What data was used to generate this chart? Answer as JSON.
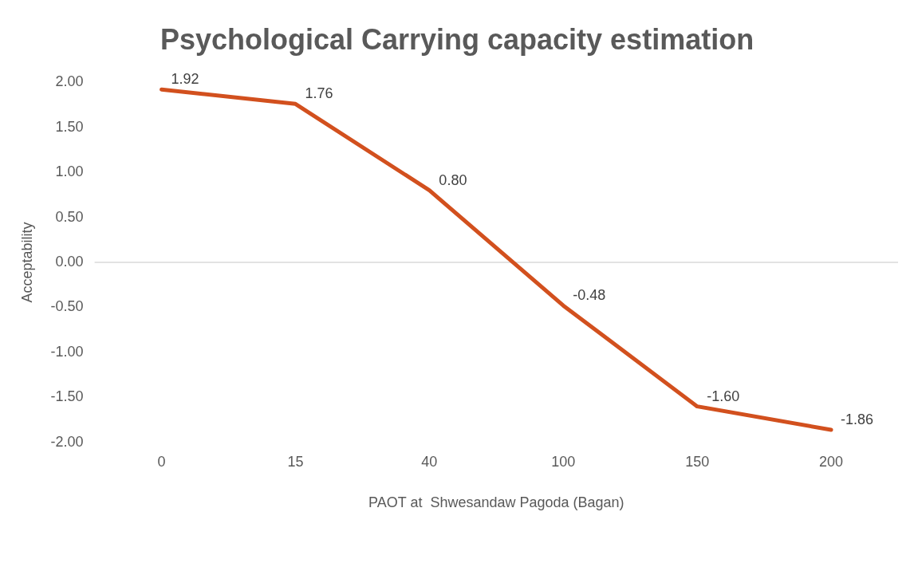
{
  "chart_data": {
    "type": "line",
    "title": "Psychological Carrying capacity estimation",
    "xlabel": "PAOT at  Shwesandaw Pagoda (Bagan)",
    "ylabel": "Acceptability",
    "categories": [
      "0",
      "15",
      "40",
      "100",
      "150",
      "200"
    ],
    "series": [
      {
        "color": "#d2501e",
        "values": [
          1.92,
          1.76,
          0.8,
          -0.48,
          -1.6,
          -1.86
        ],
        "value_labels": [
          "1.92",
          "1.76",
          "0.80",
          "-0.48",
          "-1.60",
          "-1.86"
        ]
      }
    ],
    "ylim": [
      -2,
      2
    ],
    "yticks": [
      {
        "value": -2,
        "label": "-2.00"
      },
      {
        "value": -1.5,
        "label": "-1.50"
      },
      {
        "value": -1,
        "label": "-1.00"
      },
      {
        "value": -0.5,
        "label": "-0.50"
      },
      {
        "value": 0,
        "label": "0.00"
      },
      {
        "value": 0.5,
        "label": "0.50"
      },
      {
        "value": 1,
        "label": "1.00"
      },
      {
        "value": 1.5,
        "label": "1.50"
      },
      {
        "value": 2,
        "label": "2.00"
      }
    ],
    "ref_lines": [
      {
        "axis": "y",
        "value": 0,
        "color": "#d9d9d9"
      }
    ],
    "grid": false,
    "legend": false,
    "marker": "none",
    "line_style": "solid"
  }
}
